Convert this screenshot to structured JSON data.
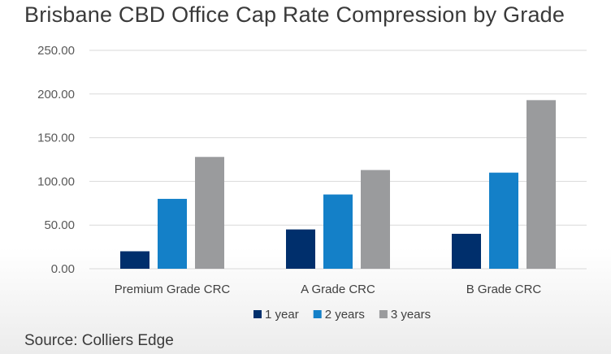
{
  "title": "Brisbane CBD Office Cap Rate Compression by Grade",
  "source": "Source: Colliers Edge",
  "colors": {
    "series_1": "#002f6c",
    "series_2": "#1480c8",
    "series_3": "#9a9b9d",
    "gridline": "#d9d9d9"
  },
  "chart_data": {
    "type": "bar",
    "title": "Brisbane CBD Office Cap Rate Compression by Grade",
    "categories": [
      "Premium Grade CRC",
      "A Grade CRC",
      "B Grade CRC"
    ],
    "series": [
      {
        "name": "1 year",
        "values": [
          20,
          45,
          40
        ]
      },
      {
        "name": "2 years",
        "values": [
          80,
          85,
          110
        ]
      },
      {
        "name": "3 years",
        "values": [
          128,
          113,
          193
        ]
      }
    ],
    "yticks": [
      "0.00",
      "50.00",
      "100.00",
      "150.00",
      "200.00",
      "250.00"
    ],
    "ylim": [
      0,
      250
    ],
    "grid": true,
    "legend": "bottom",
    "xlabel": "",
    "ylabel": ""
  }
}
